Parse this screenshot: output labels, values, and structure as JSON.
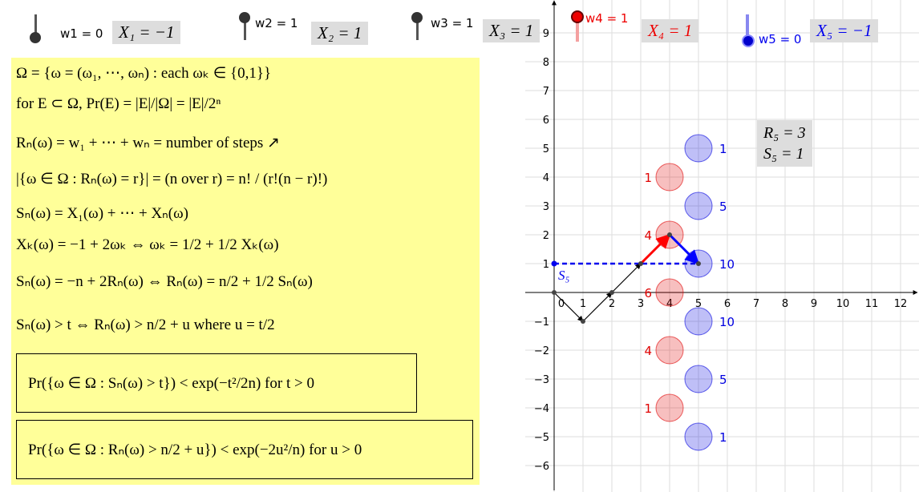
{
  "sliders": [
    {
      "label": "w1 = 0",
      "box": "X₁ = −1"
    },
    {
      "label": "w2 = 1",
      "box": "X₂ = 1"
    },
    {
      "label": "w3 = 1",
      "box": "X₃ = 1"
    },
    {
      "label": "w4 = 1",
      "box": "X₄ = 1"
    },
    {
      "label": "w5 = 0",
      "box": "X₅ = −1"
    }
  ],
  "panel": {
    "lines": [
      "Ω = {ω = (ω₁, ⋯, ωₙ) :  each ωₖ ∈ {0,1}}",
      "for E ⊂ Ω,   Pr(E) = |E|/|Ω| = |E|/2ⁿ",
      "Rₙ(ω) = w₁ + ⋯ + wₙ = number of steps  ↗",
      "|{ω ∈ Ω : Rₙ(ω) = r}| = (n over r) = n! / (r!(n − r)!)",
      "Sₙ(ω) = X₁(ω) + ⋯ + Xₙ(ω)",
      "Xₖ(ω) = −1 + 2ωₖ ⇔ ωₖ = 1/2 + 1/2 Xₖ(ω)",
      "Sₙ(ω) = −n + 2Rₙ(ω) ⇔ Rₙ(ω) = n/2 + 1/2 Sₙ(ω)",
      "Sₙ(ω) > t ⇔ Rₙ(ω) > n/2 + u where  u = t/2"
    ],
    "boxes": [
      "Pr({ω ∈ Ω : Sₙ(ω) > t}) < exp(−t²/2n)      for t > 0",
      "Pr({ω ∈ Ω : Rₙ(ω) > n/2 + u}) < exp(−2u²/n)      for u > 0"
    ]
  },
  "graph": {
    "xticks": [
      0,
      1,
      2,
      3,
      4,
      5,
      6,
      7,
      8,
      9,
      10,
      11,
      12
    ],
    "yticks": [
      {
        "value": -6,
        "label": "−6"
      },
      {
        "value": -5,
        "label": "−5"
      },
      {
        "value": -4,
        "label": "−4"
      },
      {
        "value": -3,
        "label": "−3"
      },
      {
        "value": -2,
        "label": "−2"
      },
      {
        "value": -1,
        "label": "−1"
      },
      1,
      2,
      3,
      4,
      5,
      6,
      7,
      8,
      9
    ],
    "circles": [
      {
        "x": 4,
        "y": 4,
        "label": 1,
        "color": "#e00000"
      },
      {
        "x": 4,
        "y": 2,
        "label": 4,
        "color": "#e00000"
      },
      {
        "x": 4,
        "y": 0,
        "label": 6,
        "color": "#e00000"
      },
      {
        "x": 4,
        "y": -2,
        "label": 4,
        "color": "#e00000"
      },
      {
        "x": 4,
        "y": -4,
        "label": 1,
        "color": "#e00000"
      },
      {
        "x": 5,
        "y": 5,
        "label": 1,
        "color": "#0000e0"
      },
      {
        "x": 5,
        "y": 3,
        "label": 5,
        "color": "#0000e0"
      },
      {
        "x": 5,
        "y": 1,
        "label": 10,
        "color": "#0000e0"
      },
      {
        "x": 5,
        "y": -1,
        "label": 10,
        "color": "#0000e0"
      },
      {
        "x": 5,
        "y": -3,
        "label": 5,
        "color": "#0000e0"
      },
      {
        "x": 5,
        "y": -5,
        "label": 1,
        "color": "#0000e0"
      }
    ],
    "path": {
      "x": [
        0,
        1,
        2,
        3,
        4,
        5
      ],
      "y": [
        0,
        -1,
        0,
        1,
        2,
        1
      ],
      "segment_colors": [
        "#000000",
        "#000000",
        "#000000",
        "#ff0000",
        "#0000ff"
      ]
    },
    "point_label": "S₅",
    "info": [
      "R₅ = 3",
      "S₅ = 1"
    ]
  }
}
